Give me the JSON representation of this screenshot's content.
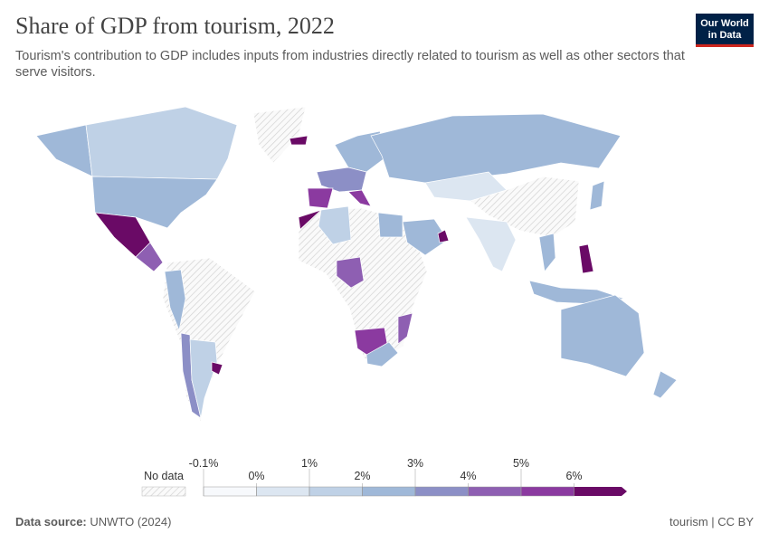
{
  "header": {
    "title": "Share of GDP from tourism, 2022",
    "subtitle": "Tourism's contribution to GDP includes inputs from industries directly related to tourism as well as other sectors that serve visitors.",
    "logo": [
      "Our World",
      "in Data"
    ]
  },
  "legend": {
    "no_data": "No data",
    "ticks": [
      {
        "value": -0.1,
        "label": "-0.1%"
      },
      {
        "value": 0,
        "label": "0%"
      },
      {
        "value": 1,
        "label": "1%"
      },
      {
        "value": 2,
        "label": "2%"
      },
      {
        "value": 3,
        "label": "3%"
      },
      {
        "value": 4,
        "label": "4%"
      },
      {
        "value": 5,
        "label": "5%"
      },
      {
        "value": 6,
        "label": "6%"
      }
    ],
    "colors": [
      "#f7f9fc",
      "#dce6f1",
      "#bfd1e6",
      "#9fb8d8",
      "#8c8fc6",
      "#8e5fb2",
      "#8b3aa0",
      "#6a0a66"
    ]
  },
  "footer": {
    "source_label": "Data source:",
    "source": "UNWTO (2024)",
    "license": "tourism | CC BY"
  }
}
